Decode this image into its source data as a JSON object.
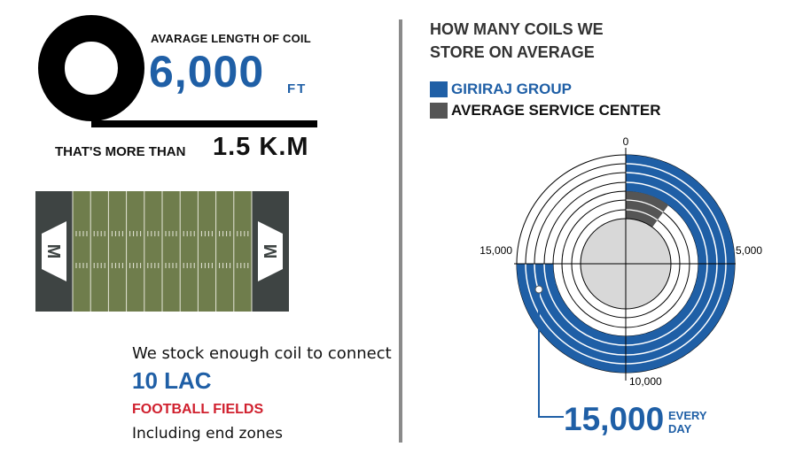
{
  "coil": {
    "label": "AVARAGE LENGTH OF COIL",
    "value": "6,000",
    "unit": "FT",
    "more_text": "THAT'S MORE THAN",
    "more_value": "1.5 K.M"
  },
  "field": {
    "end_letter": "M"
  },
  "stock": {
    "line1": "We stock enough coil to connect",
    "count": "10 LAC",
    "fields": "FOOTBALL FIELDS",
    "line4": "Including  end zones"
  },
  "chart_panel": {
    "title": "HOW MANY COILS WE STORE ON AVERAGE",
    "legend": [
      {
        "label": "GIRIRAJ GROUP",
        "color": "#1f5fa6"
      },
      {
        "label": "AVERAGE SERVICE CENTER",
        "color": "#555555"
      }
    ],
    "ticks": {
      "top": "0",
      "right": "5,000",
      "bottom": "10,000",
      "left": "15,000"
    },
    "callout_value": "15,000",
    "callout_unit_1": "EVERY",
    "callout_unit_2": "DAY"
  },
  "chart_data": {
    "type": "radial",
    "max": 20000,
    "series": [
      {
        "name": "GIRIRAJ GROUP",
        "value": 15000,
        "color": "#1f5fa6"
      },
      {
        "name": "AVERAGE SERVICE CENTER",
        "value": 2000,
        "color": "#555555"
      }
    ]
  }
}
